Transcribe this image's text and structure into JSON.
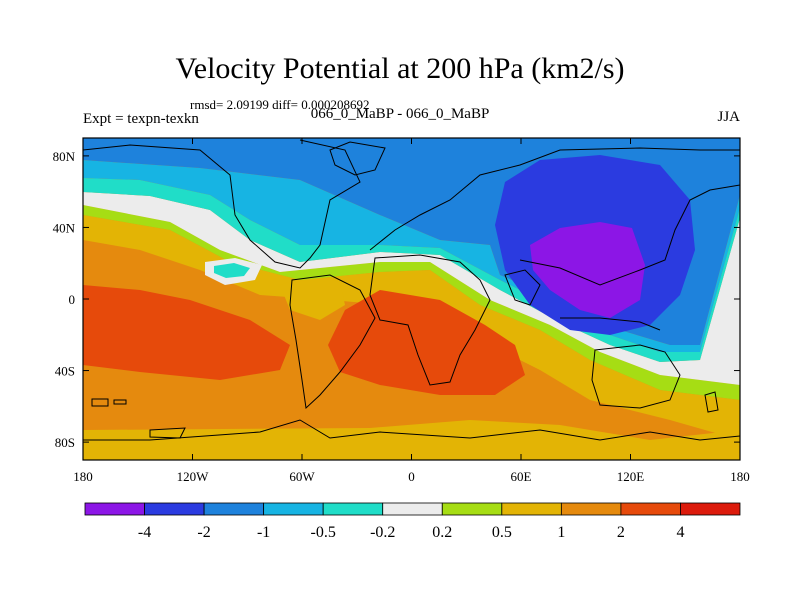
{
  "chart_data": {
    "type": "heatmap",
    "title": "Velocity Potential at 200 hPa (km2/s)",
    "stats": "rmsd= 2.09199  diff= 0.000208692",
    "left_label": "Expt = texpn-texkn",
    "center_label": "066_0_MaBP - 066_0_MaBP",
    "right_label": "JJA",
    "xlim": [
      -180,
      180
    ],
    "ylim": [
      -90,
      90
    ],
    "x_ticks": [
      {
        "value": -180,
        "label": "180"
      },
      {
        "value": -120,
        "label": "120W"
      },
      {
        "value": -60,
        "label": "60W"
      },
      {
        "value": 0,
        "label": "0"
      },
      {
        "value": 60,
        "label": "60E"
      },
      {
        "value": 120,
        "label": "120E"
      },
      {
        "value": 180,
        "label": "180"
      }
    ],
    "y_ticks": [
      {
        "value": 80,
        "label": "80N"
      },
      {
        "value": 40,
        "label": "40N"
      },
      {
        "value": 0,
        "label": "0"
      },
      {
        "value": -40,
        "label": "40S"
      },
      {
        "value": -80,
        "label": "80S"
      }
    ],
    "levels": [
      "-4",
      "-2",
      "-1",
      "-0.5",
      "-0.2",
      "0.2",
      "0.5",
      "1",
      "2",
      "4"
    ],
    "colors": [
      "#8c16e6",
      "#2b3be0",
      "#1e82dc",
      "#17b4e3",
      "#20ddc8",
      "#ececec",
      "#a6dd14",
      "#e3b405",
      "#e58a0e",
      "#e64a0b",
      "#dc1b0c"
    ]
  }
}
